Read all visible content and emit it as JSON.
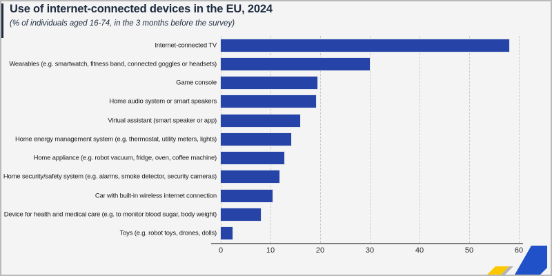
{
  "header": {
    "title": "Use of internet-connected devices in the EU, 2024",
    "subtitle": "(% of individuals aged 16-74, in the 3 months before the survey)"
  },
  "chart_data": {
    "type": "bar",
    "orientation": "horizontal",
    "title": "Use of internet-connected devices in the EU, 2024",
    "subtitle": "(% of individuals aged 16-74, in the 3 months before the survey)",
    "unit": "%",
    "categories": [
      "Internet-connected TV",
      "Wearables (e.g. smartwatch, fitness band, connected goggles or headsets)",
      "Game console",
      "Home audio system or smart speakers",
      "Virtual assistant (smart speaker or app)",
      "Home energy management system (e.g. thermostat, utility meters, lights)",
      "Home appliance (e.g. robot vacuum, fridge, oven, coffee machine)",
      "Home security/safety system (e.g. alarms, smoke detector, security cameras)",
      "Car with built-in wireless internet connection",
      "Device for health and medical care (e.g. to monitor blood sugar, body weight)",
      "Toys (e.g. robot toys, drones, dolls)"
    ],
    "values": [
      58,
      30,
      19.4,
      19.2,
      16,
      14.2,
      12.8,
      11.8,
      10.4,
      8,
      2.3
    ],
    "xlabel": "",
    "ylabel": "",
    "xlim": [
      0,
      60
    ],
    "x_ticks": [
      0,
      10,
      20,
      30,
      40,
      50,
      60
    ],
    "grid": "vertical-dashed",
    "legend": "none"
  },
  "colors": {
    "bar": "#2644a7",
    "title_text": "#1d2b3e",
    "accent_bar": "#1d2b3e",
    "background": "#f4f4f4",
    "gridline": "#c9c9c9",
    "axis_line": "#7d7d7d",
    "logo_blue": "#2151c8",
    "logo_yellow": "#fdc800",
    "logo_gray": "#b3b3b3"
  },
  "branding": {
    "corner_logo": "statistics-diagonal-stripes-logo"
  }
}
